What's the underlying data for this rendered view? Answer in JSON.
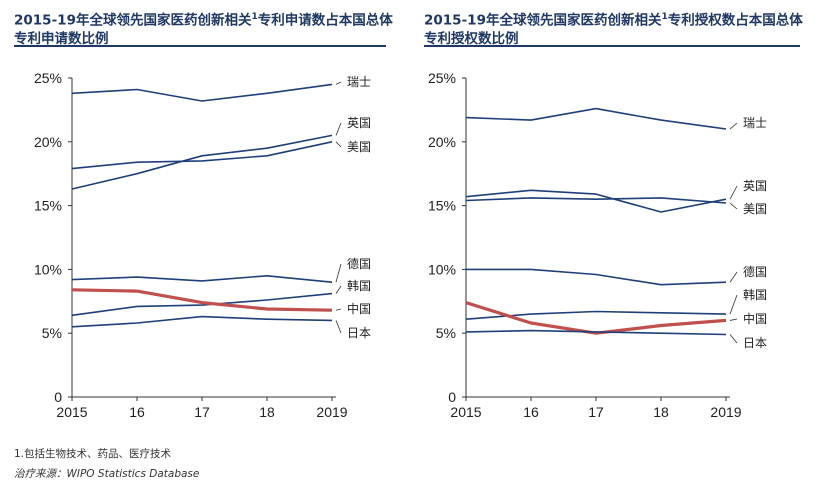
{
  "footnotes": {
    "note": "1.包括生物技术、药品、医疗技术",
    "source": "治疗来源：WIPO Statistics Database"
  },
  "chart_data": [
    {
      "type": "line",
      "title": "2015-19年全球领先国家医药创新相关",
      "title_sup": "1",
      "title_rest": "专利申请数占本国总体专利申请数比例",
      "x": [
        "2015",
        "16",
        "17",
        "18",
        "2019"
      ],
      "ylim": [
        0,
        25
      ],
      "yticks": [
        "0",
        "5%",
        "10%",
        "15%",
        "20%",
        "25%"
      ],
      "grid": false,
      "series": [
        {
          "name": "瑞士",
          "values": [
            23.8,
            24.1,
            23.2,
            23.8,
            24.5
          ],
          "color": "#1f3f7a"
        },
        {
          "name": "英国",
          "values": [
            16.3,
            17.5,
            18.9,
            19.5,
            20.5
          ],
          "color": "#1f3f7a"
        },
        {
          "name": "美国",
          "values": [
            17.9,
            18.4,
            18.5,
            18.9,
            20.0
          ],
          "color": "#1f3f7a"
        },
        {
          "name": "德国",
          "values": [
            9.2,
            9.4,
            9.1,
            9.5,
            9.0
          ],
          "color": "#1f3f7a"
        },
        {
          "name": "韩国",
          "values": [
            6.4,
            7.1,
            7.2,
            7.6,
            8.1
          ],
          "color": "#1f3f7a"
        },
        {
          "name": "中国",
          "values": [
            8.4,
            8.3,
            7.4,
            6.9,
            6.8
          ],
          "color": "#c0504d"
        },
        {
          "name": "日本",
          "values": [
            5.5,
            5.8,
            6.3,
            6.1,
            6.0
          ],
          "color": "#1f3f7a"
        }
      ]
    },
    {
      "type": "line",
      "title": "2015-19年全球领先国家医药创新相关",
      "title_sup": "1",
      "title_rest": "专利授权数占本国总体专利授权数比例",
      "x": [
        "2015",
        "16",
        "17",
        "18",
        "2019"
      ],
      "ylim": [
        0,
        25
      ],
      "yticks": [
        "0",
        "5%",
        "10%",
        "15%",
        "20%",
        "25%"
      ],
      "grid": false,
      "series": [
        {
          "name": "瑞士",
          "values": [
            21.9,
            21.7,
            22.6,
            21.7,
            21.0
          ],
          "color": "#1f3f7a"
        },
        {
          "name": "英国",
          "values": [
            15.7,
            16.2,
            15.9,
            14.5,
            15.5
          ],
          "color": "#1f3f7a"
        },
        {
          "name": "美国",
          "values": [
            15.4,
            15.6,
            15.5,
            15.6,
            15.2
          ],
          "color": "#1f3f7a"
        },
        {
          "name": "德国",
          "values": [
            10.0,
            10.0,
            9.6,
            8.8,
            9.0
          ],
          "color": "#1f3f7a"
        },
        {
          "name": "韩国",
          "values": [
            6.1,
            6.5,
            6.7,
            6.6,
            6.5
          ],
          "color": "#1f3f7a"
        },
        {
          "name": "中国",
          "values": [
            7.4,
            5.8,
            5.0,
            5.6,
            6.0
          ],
          "color": "#c0504d"
        },
        {
          "name": "日本",
          "values": [
            5.1,
            5.2,
            5.1,
            5.0,
            4.9
          ],
          "color": "#1f3f7a"
        }
      ]
    }
  ]
}
